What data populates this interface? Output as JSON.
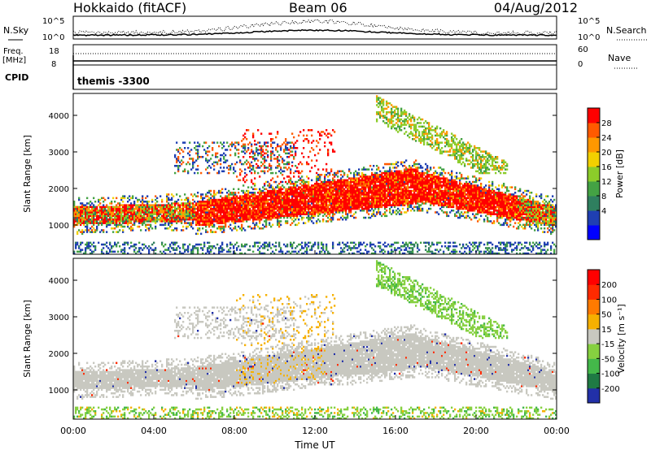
{
  "header": {
    "station": "Hokkaido (fitACF)",
    "beam": "Beam 06",
    "date": "04/Aug/2012"
  },
  "summary_panels": {
    "nsky_label": "N.Sky",
    "nsearch_label": "N.Search",
    "nsky_ticks": [
      "10^5",
      "10^0"
    ],
    "freq_label_1": "Freq.",
    "freq_label_2": "[MHz]",
    "freq_ticks": [
      "18",
      "8"
    ],
    "nave_ticks": [
      "60",
      "0"
    ],
    "nave_label": "Nave",
    "cpid_label": "CPID",
    "cpid_value": "themis -3300"
  },
  "chart_data": [
    {
      "type": "heatmap",
      "name": "power-panel",
      "ylabel": "Slant Range [km]",
      "xlabel": "",
      "x_range_hours": [
        0,
        24
      ],
      "ylim_km": [
        200,
        4600
      ],
      "y_ticks": [
        "1000",
        "2000",
        "3000",
        "4000"
      ],
      "colorbar_label": "Power [dB]",
      "colorbar_ticks": [
        "28",
        "24",
        "20",
        "16",
        "12",
        "8",
        "4"
      ],
      "colorbar_colors": [
        "#0000ff",
        "#1f3fb2",
        "#2f7f5f",
        "#44a244",
        "#8ccc2a",
        "#f2d000",
        "#ff9800",
        "#ff5a00",
        "#ff0000"
      ],
      "colorbar_range": [
        0,
        32
      ]
    },
    {
      "type": "heatmap",
      "name": "velocity-panel",
      "ylabel": "Slant Range [km]",
      "xlabel": "Time UT",
      "x_range_hours": [
        0,
        24
      ],
      "x_ticks": [
        "00:00",
        "04:00",
        "08:00",
        "12:00",
        "16:00",
        "20:00",
        "00:00"
      ],
      "ylim_km": [
        200,
        4600
      ],
      "y_ticks": [
        "1000",
        "2000",
        "3000",
        "4000"
      ],
      "colorbar_label": "Velocity [m s⁻¹]",
      "colorbar_ticks": [
        "200",
        "100",
        "50",
        "15",
        "-15",
        "-50",
        "-100",
        "-200"
      ],
      "colorbar_colors": [
        "#2230a8",
        "#1f7a44",
        "#44b84a",
        "#86d040",
        "#c8c8c0",
        "#f6b000",
        "#ff7a00",
        "#ff2a00",
        "#ff0000"
      ]
    }
  ]
}
